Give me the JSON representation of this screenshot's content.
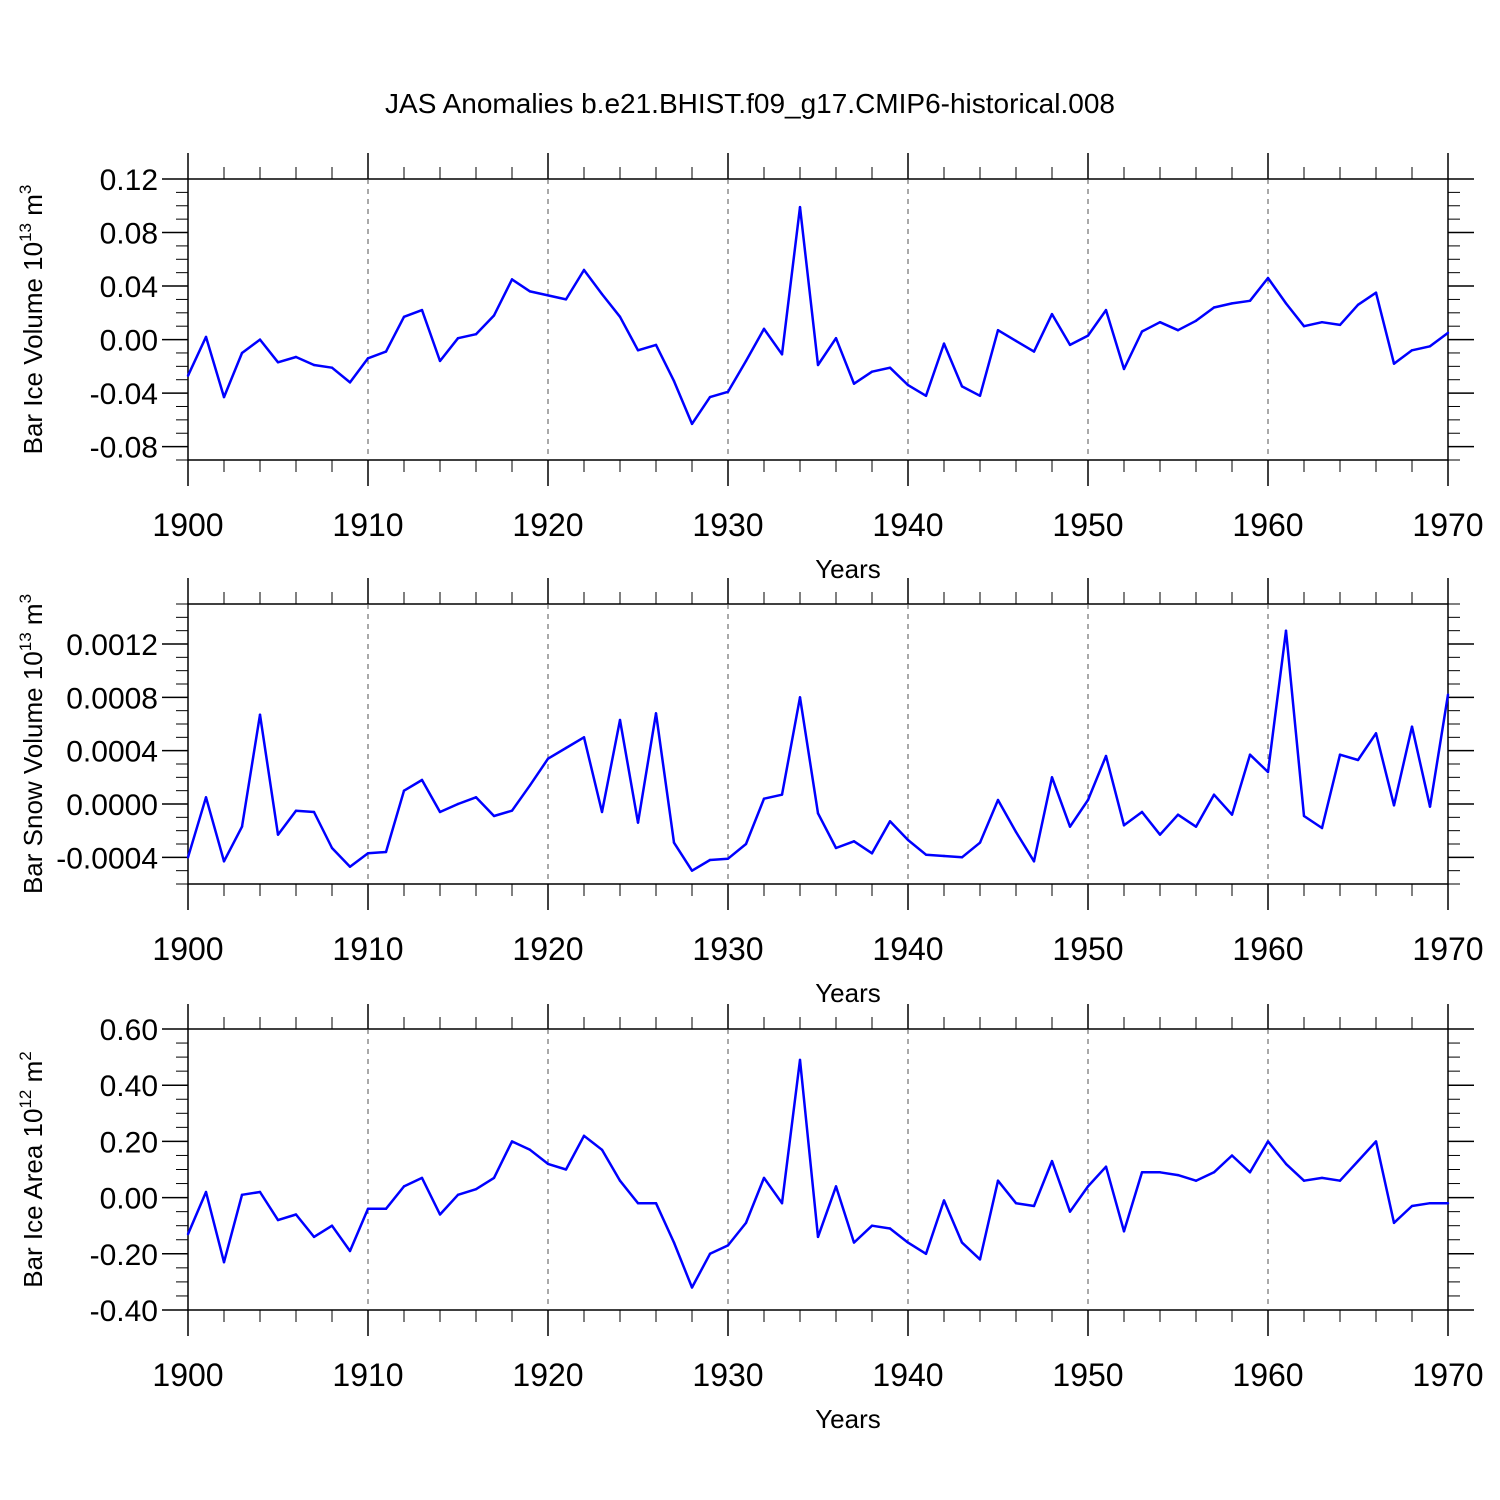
{
  "figure_title": "JAS Anomalies b.e21.BHIST.f09_g17.CMIP6-historical.008",
  "colors": {
    "series": "#0000ff",
    "axis": "#000000",
    "grid": "#555555"
  },
  "chart_data": [
    {
      "type": "line",
      "title": "JAS Anomalies b.e21.BHIST.f09_g17.CMIP6-historical.008",
      "ylabel": "Bar Ice Volume 10",
      "ylabel_exp": "13",
      "ylabel_unit": " m",
      "ylabel_unit_exp": "3",
      "xlabel": "Years",
      "xlim": [
        1900,
        1970
      ],
      "ylim": [
        -0.09,
        0.12
      ],
      "xticks": [
        1900,
        1910,
        1920,
        1930,
        1940,
        1950,
        1960,
        1970
      ],
      "xtick_labels": [
        "1900",
        "1910",
        "1920",
        "1930",
        "1940",
        "1950",
        "1960",
        "1970"
      ],
      "yticks": [
        -0.08,
        -0.04,
        0.0,
        0.04,
        0.08,
        0.12
      ],
      "ytick_labels": [
        "-0.08",
        "-0.04",
        "0.00",
        "0.04",
        "0.08",
        "0.12"
      ],
      "grid": "vertical dashed at decades",
      "series": [
        {
          "name": "Bar Ice Volume",
          "x": [
            1900,
            1901,
            1902,
            1903,
            1904,
            1905,
            1906,
            1907,
            1908,
            1909,
            1910,
            1911,
            1912,
            1913,
            1914,
            1915,
            1916,
            1917,
            1918,
            1919,
            1920,
            1921,
            1922,
            1923,
            1924,
            1925,
            1926,
            1927,
            1928,
            1929,
            1930,
            1931,
            1932,
            1933,
            1934,
            1935,
            1936,
            1937,
            1938,
            1939,
            1940,
            1941,
            1942,
            1943,
            1944,
            1945,
            1946,
            1947,
            1948,
            1949,
            1950,
            1951,
            1952,
            1953,
            1954,
            1955,
            1956,
            1957,
            1958,
            1959,
            1960,
            1961,
            1962,
            1963,
            1964,
            1965,
            1966,
            1967,
            1968,
            1969,
            1970
          ],
          "values": [
            -0.027,
            0.002,
            -0.043,
            -0.01,
            0.0,
            -0.017,
            -0.013,
            -0.019,
            -0.021,
            -0.032,
            -0.014,
            -0.009,
            0.017,
            0.022,
            -0.016,
            0.001,
            0.004,
            0.018,
            0.045,
            0.036,
            0.033,
            0.03,
            0.052,
            0.034,
            0.017,
            -0.008,
            -0.004,
            -0.031,
            -0.063,
            -0.043,
            -0.039,
            -0.016,
            0.008,
            -0.011,
            0.099,
            -0.019,
            0.001,
            -0.033,
            -0.024,
            -0.021,
            -0.034,
            -0.042,
            -0.003,
            -0.035,
            -0.042,
            0.007,
            -0.001,
            -0.009,
            0.019,
            -0.004,
            0.003,
            0.022,
            -0.022,
            0.006,
            0.013,
            0.007,
            0.014,
            0.024,
            0.027,
            0.029,
            0.046,
            0.027,
            0.01,
            0.013,
            0.011,
            0.026,
            0.035,
            -0.018,
            -0.008,
            -0.005,
            0.005
          ]
        }
      ]
    },
    {
      "type": "line",
      "ylabel": "Bar Snow Volume 10",
      "ylabel_exp": "13",
      "ylabel_unit": " m",
      "ylabel_unit_exp": "3",
      "xlabel": "Years",
      "xlim": [
        1900,
        1970
      ],
      "ylim": [
        -0.0006,
        0.0015
      ],
      "xticks": [
        1900,
        1910,
        1920,
        1930,
        1940,
        1950,
        1960,
        1970
      ],
      "xtick_labels": [
        "1900",
        "1910",
        "1920",
        "1930",
        "1940",
        "1950",
        "1960",
        "1970"
      ],
      "yticks": [
        -0.0004,
        0.0,
        0.0004,
        0.0008,
        0.0012
      ],
      "ytick_labels": [
        "-0.0004",
        "0.0000",
        "0.0004",
        "0.0008",
        "0.0012"
      ],
      "grid": "vertical dashed at decades",
      "series": [
        {
          "name": "Bar Snow Volume",
          "x": [
            1900,
            1901,
            1902,
            1903,
            1904,
            1905,
            1906,
            1907,
            1908,
            1909,
            1910,
            1911,
            1912,
            1913,
            1914,
            1915,
            1916,
            1917,
            1918,
            1919,
            1920,
            1921,
            1922,
            1923,
            1924,
            1925,
            1926,
            1927,
            1928,
            1929,
            1930,
            1931,
            1932,
            1933,
            1934,
            1935,
            1936,
            1937,
            1938,
            1939,
            1940,
            1941,
            1942,
            1943,
            1944,
            1945,
            1946,
            1947,
            1948,
            1949,
            1950,
            1951,
            1952,
            1953,
            1954,
            1955,
            1956,
            1957,
            1958,
            1959,
            1960,
            1961,
            1962,
            1963,
            1964,
            1965,
            1966,
            1967,
            1968,
            1969,
            1970
          ],
          "values": [
            -0.0004,
            5e-05,
            -0.00043,
            -0.00017,
            0.00067,
            -0.00023,
            -5e-05,
            -6e-05,
            -0.00033,
            -0.00047,
            -0.00037,
            -0.00036,
            0.0001,
            0.00018,
            -6e-05,
            0.0,
            5e-05,
            -9e-05,
            -5e-05,
            0.00014,
            0.00034,
            0.00042,
            0.0005,
            -6e-05,
            0.00063,
            -0.00014,
            0.00068,
            -0.00029,
            -0.0005,
            -0.00042,
            -0.00041,
            -0.0003,
            4e-05,
            7e-05,
            0.0008,
            -7e-05,
            -0.00033,
            -0.00028,
            -0.00037,
            -0.00013,
            -0.00027,
            -0.00038,
            -0.00039,
            -0.0004,
            -0.00029,
            3e-05,
            -0.00021,
            -0.00043,
            0.0002,
            -0.00017,
            3e-05,
            0.00036,
            -0.00016,
            -6e-05,
            -0.00023,
            -8e-05,
            -0.00017,
            7e-05,
            -8e-05,
            0.00037,
            0.00024,
            0.0013,
            -9e-05,
            -0.00018,
            0.00037,
            0.00033,
            0.00053,
            -1e-05,
            0.00058,
            -2e-05,
            0.00082
          ]
        }
      ]
    },
    {
      "type": "line",
      "ylabel": "Bar Ice Area 10",
      "ylabel_exp": "12",
      "ylabel_unit": " m",
      "ylabel_unit_exp": "2",
      "xlabel": "Years",
      "xlim": [
        1900,
        1970
      ],
      "ylim": [
        -0.4,
        0.6
      ],
      "xticks": [
        1900,
        1910,
        1920,
        1930,
        1940,
        1950,
        1960,
        1970
      ],
      "xtick_labels": [
        "1900",
        "1910",
        "1920",
        "1930",
        "1940",
        "1950",
        "1960",
        "1970"
      ],
      "yticks": [
        -0.4,
        -0.2,
        0.0,
        0.2,
        0.4,
        0.6
      ],
      "ytick_labels": [
        "-0.40",
        "-0.20",
        "0.00",
        "0.20",
        "0.40",
        "0.60"
      ],
      "grid": "vertical dashed at decades",
      "series": [
        {
          "name": "Bar Ice Area",
          "x": [
            1900,
            1901,
            1902,
            1903,
            1904,
            1905,
            1906,
            1907,
            1908,
            1909,
            1910,
            1911,
            1912,
            1913,
            1914,
            1915,
            1916,
            1917,
            1918,
            1919,
            1920,
            1921,
            1922,
            1923,
            1924,
            1925,
            1926,
            1927,
            1928,
            1929,
            1930,
            1931,
            1932,
            1933,
            1934,
            1935,
            1936,
            1937,
            1938,
            1939,
            1940,
            1941,
            1942,
            1943,
            1944,
            1945,
            1946,
            1947,
            1948,
            1949,
            1950,
            1951,
            1952,
            1953,
            1954,
            1955,
            1956,
            1957,
            1958,
            1959,
            1960,
            1961,
            1962,
            1963,
            1964,
            1965,
            1966,
            1967,
            1968,
            1969,
            1970
          ],
          "values": [
            -0.13,
            0.02,
            -0.23,
            0.01,
            0.02,
            -0.08,
            -0.06,
            -0.14,
            -0.1,
            -0.19,
            -0.04,
            -0.04,
            0.04,
            0.07,
            -0.06,
            0.01,
            0.03,
            0.07,
            0.2,
            0.17,
            0.12,
            0.1,
            0.22,
            0.17,
            0.06,
            -0.02,
            -0.02,
            -0.16,
            -0.32,
            -0.2,
            -0.17,
            -0.09,
            0.07,
            -0.02,
            0.49,
            -0.14,
            0.04,
            -0.16,
            -0.1,
            -0.11,
            -0.16,
            -0.2,
            -0.01,
            -0.16,
            -0.22,
            0.06,
            -0.02,
            -0.03,
            0.13,
            -0.05,
            0.04,
            0.11,
            -0.12,
            0.09,
            0.09,
            0.08,
            0.06,
            0.09,
            0.15,
            0.09,
            0.2,
            0.12,
            0.06,
            0.07,
            0.06,
            0.13,
            0.2,
            -0.09,
            -0.03,
            -0.02,
            -0.02
          ]
        }
      ]
    }
  ]
}
